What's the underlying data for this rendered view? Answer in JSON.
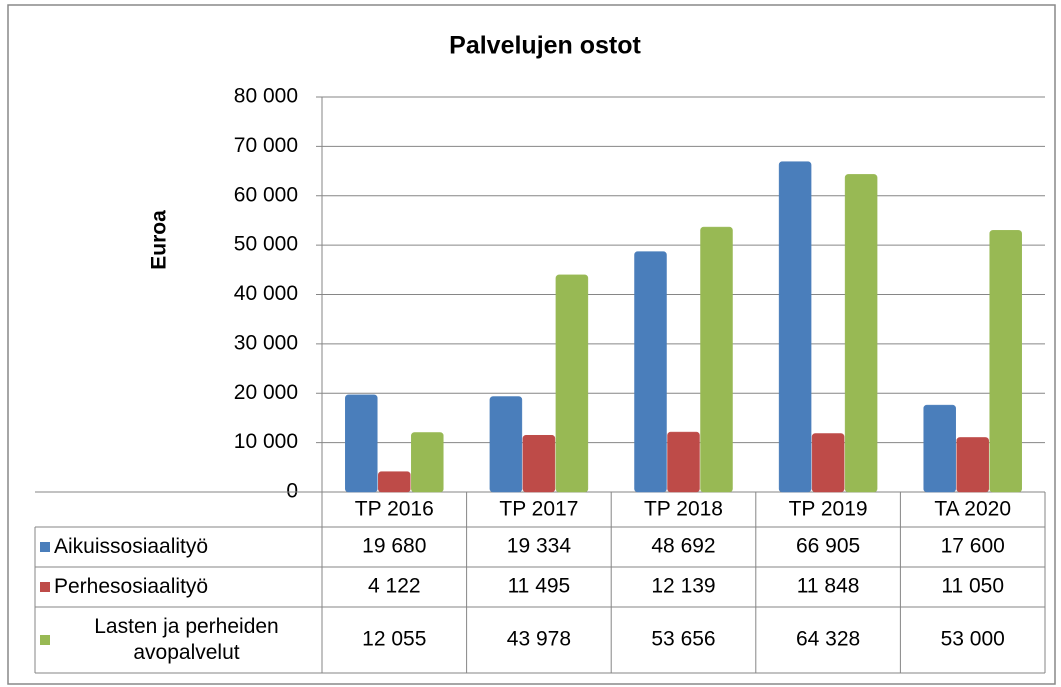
{
  "chart_data": {
    "type": "bar",
    "title": "Palvelujen ostot",
    "ylabel": "Euroa",
    "categories": [
      "TP 2016",
      "TP 2017",
      "TP 2018",
      "TP 2019",
      "TA 2020"
    ],
    "series": [
      {
        "name": "Aikuissosiaalityö",
        "color": "#4a7ebb",
        "values": [
          19680,
          19334,
          48692,
          66905,
          17600
        ],
        "value_labels": [
          "19 680",
          "19 334",
          "48 692",
          "66 905",
          "17 600"
        ]
      },
      {
        "name": "Perhesosiaalityö",
        "color": "#be4b48",
        "values": [
          4122,
          11495,
          12139,
          11848,
          11050
        ],
        "value_labels": [
          "4 122",
          "11 495",
          "12 139",
          "11 848",
          "11 050"
        ]
      },
      {
        "name": "Lasten ja perheiden avopalvelut",
        "color": "#98b954",
        "values": [
          12055,
          43978,
          53656,
          64328,
          53000
        ],
        "value_labels": [
          "12 055",
          "43 978",
          "53 656",
          "64 328",
          "53 000"
        ]
      }
    ],
    "ylim": [
      0,
      80000
    ],
    "yticks": [
      0,
      {
        "value": 10000,
        "label": "10 000"
      },
      {
        "value": 20000,
        "label": "20 000"
      },
      {
        "value": 30000,
        "label": "30 000"
      },
      {
        "value": 40000,
        "label": "40 000"
      },
      {
        "value": 50000,
        "label": "50 000"
      },
      {
        "value": 60000,
        "label": "60 000"
      },
      {
        "value": 70000,
        "label": "70 000"
      },
      {
        "value": 80000,
        "label": "80 000"
      }
    ],
    "grid": true
  }
}
